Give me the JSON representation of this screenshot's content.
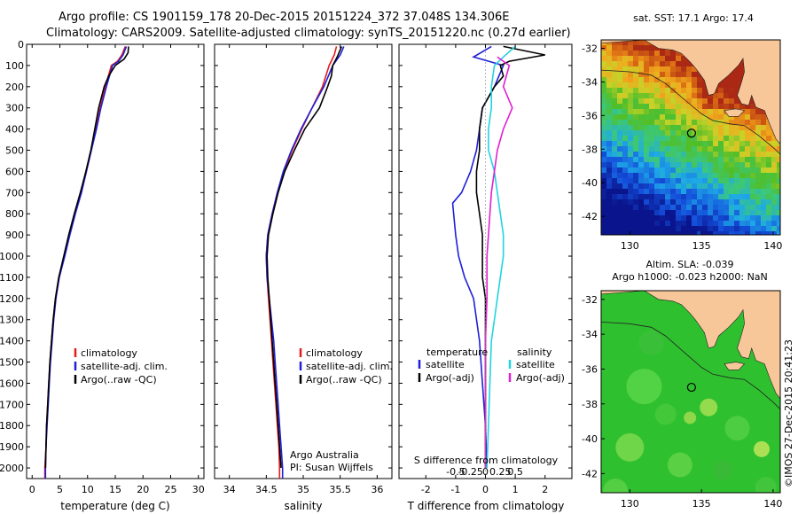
{
  "header": {
    "line1": "Argo profile: CS 1901159_178 20-Dec-2015 20151224_372 37.048S 134.306E",
    "line2": "Climatology: CARS2009. Satellite-adjusted climatology: synTS_20151220.nc (0.27d earlier)"
  },
  "copyright": "©IMOS 27-Dec-2015 20:41:23",
  "colors": {
    "climatology": "#e41a1c",
    "satellite": "#1f1fd6",
    "argo": "#000000",
    "sal_satellite": "#22d3e0",
    "sal_argo": "#e020d0",
    "land": "#f7c699"
  },
  "chart_data": [
    {
      "type": "line",
      "id": "temperature",
      "xlabel": "temperature (deg C)",
      "ylabel": "",
      "xlim": [
        -1,
        31
      ],
      "ylim": [
        2050,
        0
      ],
      "xticks": [
        0,
        5,
        10,
        15,
        20,
        25,
        30
      ],
      "yticks": [
        0,
        100,
        200,
        300,
        400,
        500,
        600,
        700,
        800,
        900,
        1000,
        1100,
        1200,
        1300,
        1400,
        1500,
        1600,
        1700,
        1800,
        1900,
        2000
      ],
      "legend": [
        "climatology",
        "satellite-adj. clim.",
        "Argo(..raw -QC)"
      ],
      "series": [
        {
          "name": "climatology",
          "color": "#e41a1c",
          "points": [
            [
              16.8,
              10
            ],
            [
              16.2,
              50
            ],
            [
              15.4,
              80
            ],
            [
              14.3,
              100
            ],
            [
              13.2,
              200
            ],
            [
              12.3,
              300
            ],
            [
              11.5,
              400
            ],
            [
              10.6,
              500
            ],
            [
              9.7,
              600
            ],
            [
              8.8,
              700
            ],
            [
              7.7,
              800
            ],
            [
              6.7,
              900
            ],
            [
              5.8,
              1000
            ],
            [
              4.8,
              1100
            ],
            [
              4.2,
              1200
            ],
            [
              3.8,
              1300
            ],
            [
              3.5,
              1400
            ],
            [
              3.2,
              1500
            ],
            [
              3.0,
              1600
            ],
            [
              2.8,
              1700
            ],
            [
              2.6,
              1800
            ],
            [
              2.5,
              1900
            ],
            [
              2.3,
              2000
            ],
            [
              2.3,
              2050
            ]
          ]
        },
        {
          "name": "satellite-adj. clim.",
          "color": "#1f1fd6",
          "points": [
            [
              17.0,
              10
            ],
            [
              16.4,
              50
            ],
            [
              15.6,
              80
            ],
            [
              14.5,
              100
            ],
            [
              13.4,
              200
            ],
            [
              12.4,
              300
            ],
            [
              11.6,
              400
            ],
            [
              10.7,
              500
            ],
            [
              9.8,
              600
            ],
            [
              8.9,
              700
            ],
            [
              7.8,
              800
            ],
            [
              6.8,
              900
            ],
            [
              5.9,
              1000
            ],
            [
              4.9,
              1100
            ],
            [
              4.3,
              1200
            ],
            [
              3.9,
              1300
            ],
            [
              3.6,
              1400
            ],
            [
              3.3,
              1500
            ],
            [
              3.1,
              1600
            ],
            [
              2.9,
              1700
            ],
            [
              2.7,
              1800
            ],
            [
              2.5,
              1900
            ],
            [
              2.4,
              2000
            ],
            [
              2.4,
              2050
            ]
          ]
        },
        {
          "name": "Argo(..raw -QC)",
          "color": "#000000",
          "points": [
            [
              17.4,
              10
            ],
            [
              17.3,
              40
            ],
            [
              16.6,
              70
            ],
            [
              15.0,
              100
            ],
            [
              13.8,
              150
            ],
            [
              13.0,
              200
            ],
            [
              12.0,
              300
            ],
            [
              11.3,
              400
            ],
            [
              10.6,
              500
            ],
            [
              9.7,
              600
            ],
            [
              8.7,
              700
            ],
            [
              7.6,
              800
            ],
            [
              6.6,
              900
            ],
            [
              5.7,
              1000
            ],
            [
              4.8,
              1100
            ],
            [
              4.2,
              1200
            ],
            [
              3.8,
              1300
            ],
            [
              3.5,
              1400
            ],
            [
              3.2,
              1500
            ],
            [
              3.0,
              1600
            ],
            [
              2.8,
              1700
            ],
            [
              2.6,
              1800
            ],
            [
              2.5,
              1900
            ],
            [
              2.4,
              2000
            ]
          ]
        }
      ]
    },
    {
      "type": "line",
      "id": "salinity",
      "xlabel": "salinity",
      "xlim": [
        33.8,
        36.2
      ],
      "ylim": [
        2050,
        0
      ],
      "xticks": [
        34,
        34.5,
        35,
        35.5,
        36
      ],
      "xticklabels": [
        "34",
        "34.5",
        "35",
        "35.5",
        "36"
      ],
      "legend": [
        "climatology",
        "satellite-adj. clim.",
        "Argo(..raw -QC)"
      ],
      "annotation": [
        "Argo Australia",
        "PI: Susan Wijffels"
      ],
      "series": [
        {
          "name": "climatology",
          "color": "#e41a1c",
          "points": [
            [
              35.45,
              10
            ],
            [
              35.42,
              50
            ],
            [
              35.35,
              100
            ],
            [
              35.26,
              200
            ],
            [
              35.12,
              300
            ],
            [
              34.98,
              400
            ],
            [
              34.85,
              500
            ],
            [
              34.74,
              600
            ],
            [
              34.65,
              700
            ],
            [
              34.58,
              800
            ],
            [
              34.52,
              900
            ],
            [
              34.5,
              1000
            ],
            [
              34.51,
              1100
            ],
            [
              34.53,
              1200
            ],
            [
              34.55,
              1300
            ],
            [
              34.57,
              1400
            ],
            [
              34.59,
              1500
            ],
            [
              34.61,
              1600
            ],
            [
              34.63,
              1700
            ],
            [
              34.65,
              1800
            ],
            [
              34.67,
              1900
            ],
            [
              34.68,
              2000
            ],
            [
              34.68,
              2050
            ]
          ]
        },
        {
          "name": "satellite-adj. clim.",
          "color": "#1f1fd6",
          "points": [
            [
              35.55,
              10
            ],
            [
              35.5,
              50
            ],
            [
              35.4,
              100
            ],
            [
              35.28,
              200
            ],
            [
              35.12,
              300
            ],
            [
              34.97,
              400
            ],
            [
              34.84,
              500
            ],
            [
              34.73,
              600
            ],
            [
              34.65,
              700
            ],
            [
              34.58,
              800
            ],
            [
              34.52,
              900
            ],
            [
              34.5,
              1000
            ],
            [
              34.51,
              1100
            ],
            [
              34.54,
              1200
            ],
            [
              34.57,
              1300
            ],
            [
              34.6,
              1400
            ],
            [
              34.62,
              1500
            ],
            [
              34.64,
              1600
            ],
            [
              34.66,
              1700
            ],
            [
              34.68,
              1800
            ],
            [
              34.7,
              1900
            ],
            [
              34.72,
              2000
            ],
            [
              34.72,
              2050
            ]
          ]
        },
        {
          "name": "Argo(..raw -QC)",
          "color": "#000000",
          "points": [
            [
              35.52,
              10
            ],
            [
              35.46,
              60
            ],
            [
              35.4,
              100
            ],
            [
              35.38,
              150
            ],
            [
              35.33,
              200
            ],
            [
              35.22,
              300
            ],
            [
              35.02,
              400
            ],
            [
              34.88,
              500
            ],
            [
              34.75,
              600
            ],
            [
              34.66,
              700
            ],
            [
              34.59,
              800
            ],
            [
              34.53,
              900
            ],
            [
              34.51,
              1000
            ],
            [
              34.52,
              1100
            ],
            [
              34.54,
              1200
            ],
            [
              34.56,
              1300
            ],
            [
              34.58,
              1400
            ],
            [
              34.6,
              1500
            ],
            [
              34.62,
              1600
            ],
            [
              34.64,
              1700
            ],
            [
              34.66,
              1800
            ],
            [
              34.68,
              1900
            ],
            [
              34.7,
              2000
            ]
          ]
        }
      ]
    },
    {
      "type": "line",
      "id": "differences",
      "xlabel": "T difference from climatology",
      "top_axis_label": "S difference from climatology",
      "xlim": [
        -2.9,
        2.9
      ],
      "ylim": [
        2050,
        0
      ],
      "xticks": [
        -2,
        -1,
        0,
        1,
        2
      ],
      "top_ticks": [
        -0.5,
        -0.25,
        0,
        0.25,
        0.5
      ],
      "top_ticklabels": [
        "-0.5",
        "-0.25",
        "0",
        "0.25",
        "0.5"
      ],
      "legend_temperature": {
        "title": "temperature",
        "entries": [
          "satellite",
          "Argo(-adj)"
        ]
      },
      "legend_salinity": {
        "title": "salinity",
        "entries": [
          "satellite",
          "Argo(-adj)"
        ]
      },
      "series": [
        {
          "name": "T satellite",
          "color": "#1f1fd6",
          "points": [
            [
              0.2,
              10
            ],
            [
              -0.4,
              60
            ],
            [
              0.6,
              100
            ],
            [
              0.3,
              200
            ],
            [
              -0.1,
              300
            ],
            [
              -0.2,
              400
            ],
            [
              -0.3,
              500
            ],
            [
              -0.5,
              600
            ],
            [
              -0.8,
              700
            ],
            [
              -1.1,
              750
            ],
            [
              -1.0,
              900
            ],
            [
              -0.9,
              1000
            ],
            [
              -0.7,
              1100
            ],
            [
              -0.4,
              1200
            ],
            [
              -0.2,
              1400
            ],
            [
              -0.1,
              1600
            ],
            [
              0.0,
              1800
            ],
            [
              0.05,
              2000
            ]
          ]
        },
        {
          "name": "T Argo(-adj)",
          "color": "#000000",
          "points": [
            [
              0.6,
              10
            ],
            [
              2.0,
              50
            ],
            [
              0.8,
              80
            ],
            [
              0.5,
              100
            ],
            [
              0.6,
              150
            ],
            [
              0.3,
              200
            ],
            [
              -0.1,
              300
            ],
            [
              -0.2,
              400
            ],
            [
              -0.2,
              500
            ],
            [
              -0.3,
              600
            ],
            [
              -0.3,
              700
            ],
            [
              -0.2,
              800
            ],
            [
              -0.1,
              900
            ],
            [
              -0.1,
              1000
            ],
            [
              -0.1,
              1100
            ],
            [
              0.0,
              1200
            ],
            [
              0.0,
              1400
            ],
            [
              0.0,
              1600
            ],
            [
              0.0,
              1800
            ],
            [
              0.0,
              2000
            ]
          ]
        },
        {
          "name": "S satellite",
          "color": "#22d3e0",
          "points": [
            [
              1.0,
              10
            ],
            [
              0.6,
              60
            ],
            [
              0.3,
              100
            ],
            [
              0.2,
              200
            ],
            [
              0.2,
              300
            ],
            [
              0.1,
              400
            ],
            [
              0.1,
              500
            ],
            [
              0.3,
              600
            ],
            [
              0.4,
              700
            ],
            [
              0.5,
              800
            ],
            [
              0.6,
              900
            ],
            [
              0.6,
              1000
            ],
            [
              0.5,
              1100
            ],
            [
              0.4,
              1200
            ],
            [
              0.3,
              1300
            ],
            [
              0.2,
              1400
            ],
            [
              0.15,
              1600
            ],
            [
              0.1,
              1800
            ],
            [
              0.05,
              2000
            ]
          ]
        },
        {
          "name": "S Argo(-adj)",
          "color": "#e020d0",
          "points": [
            [
              0.4,
              60
            ],
            [
              0.8,
              100
            ],
            [
              0.7,
              150
            ],
            [
              0.6,
              200
            ],
            [
              0.9,
              300
            ],
            [
              0.6,
              400
            ],
            [
              0.4,
              500
            ],
            [
              0.3,
              600
            ],
            [
              0.2,
              700
            ],
            [
              0.15,
              800
            ],
            [
              0.1,
              900
            ],
            [
              0.05,
              1000
            ],
            [
              0.05,
              1200
            ],
            [
              0.0,
              1400
            ],
            [
              0.0,
              1600
            ],
            [
              0.0,
              1800
            ],
            [
              0.0,
              2000
            ]
          ]
        }
      ]
    },
    {
      "type": "heatmap",
      "id": "sst_map",
      "title": "sat. SST: 17.1 Argo: 17.4",
      "xlim": [
        128,
        140.5
      ],
      "ylim": [
        -43.1,
        -31.5
      ],
      "xticks": [
        130,
        135,
        140
      ],
      "yticks": [
        -32,
        -34,
        -36,
        -38,
        -40,
        -42
      ],
      "float_position": [
        134.306,
        -37.048
      ]
    },
    {
      "type": "heatmap",
      "id": "sla_map",
      "title_line1": "Altim. SLA: -0.039",
      "title_line2": "Argo h1000: -0.023 h2000: NaN",
      "xlim": [
        128,
        140.5
      ],
      "ylim": [
        -43.1,
        -31.5
      ],
      "xticks": [
        130,
        135,
        140
      ],
      "yticks": [
        -32,
        -34,
        -36,
        -38,
        -40,
        -42
      ],
      "float_position": [
        134.306,
        -37.048
      ]
    }
  ]
}
